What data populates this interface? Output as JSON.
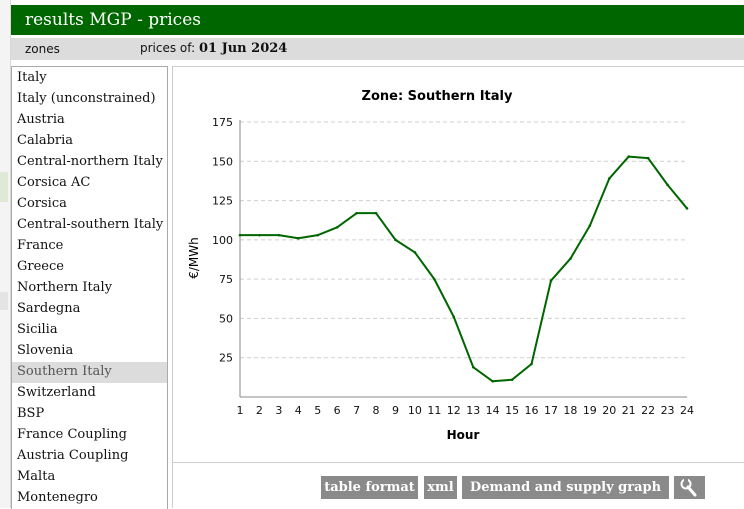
{
  "header": {
    "title": "results MGP - prices"
  },
  "subbar": {
    "zones_label": "zones",
    "prices_of_label": "prices of:",
    "date": "01 Jun 2024"
  },
  "zones": [
    "Italy",
    "Italy (unconstrained)",
    "Austria",
    "Calabria",
    "Central-northern Italy",
    "Corsica AC",
    "Corsica",
    "Central-southern Italy",
    "France",
    "Greece",
    "Northern Italy",
    "Sardegna",
    "Sicilia",
    "Slovenia",
    "Southern Italy",
    "Switzerland",
    "BSP",
    "France Coupling",
    "Austria Coupling",
    "Malta",
    "Montenegro"
  ],
  "selected_zone": "Southern Italy",
  "buttons": {
    "table_format": "table format",
    "xml": "xml",
    "demand_supply": "Demand and supply graph",
    "tool_icon": "wrench-icon"
  },
  "chart_data": {
    "type": "line",
    "title": "Zone: Southern Italy",
    "xlabel": "Hour",
    "ylabel": "€/MWh",
    "x": [
      1,
      2,
      3,
      4,
      5,
      6,
      7,
      8,
      9,
      10,
      11,
      12,
      13,
      14,
      15,
      16,
      17,
      18,
      19,
      20,
      21,
      22,
      23,
      24
    ],
    "y": [
      103,
      103,
      103,
      101,
      103,
      108,
      117,
      117,
      100,
      92,
      75,
      51,
      19,
      10,
      11,
      21,
      74,
      88,
      109,
      139,
      153,
      152,
      135,
      120
    ],
    "xlim": [
      1,
      24
    ],
    "ylim": [
      0,
      175
    ],
    "yticks": [
      25,
      50,
      75,
      100,
      125,
      150,
      175
    ],
    "grid": "horizontal",
    "line_color": "#006600",
    "legend": "none"
  }
}
